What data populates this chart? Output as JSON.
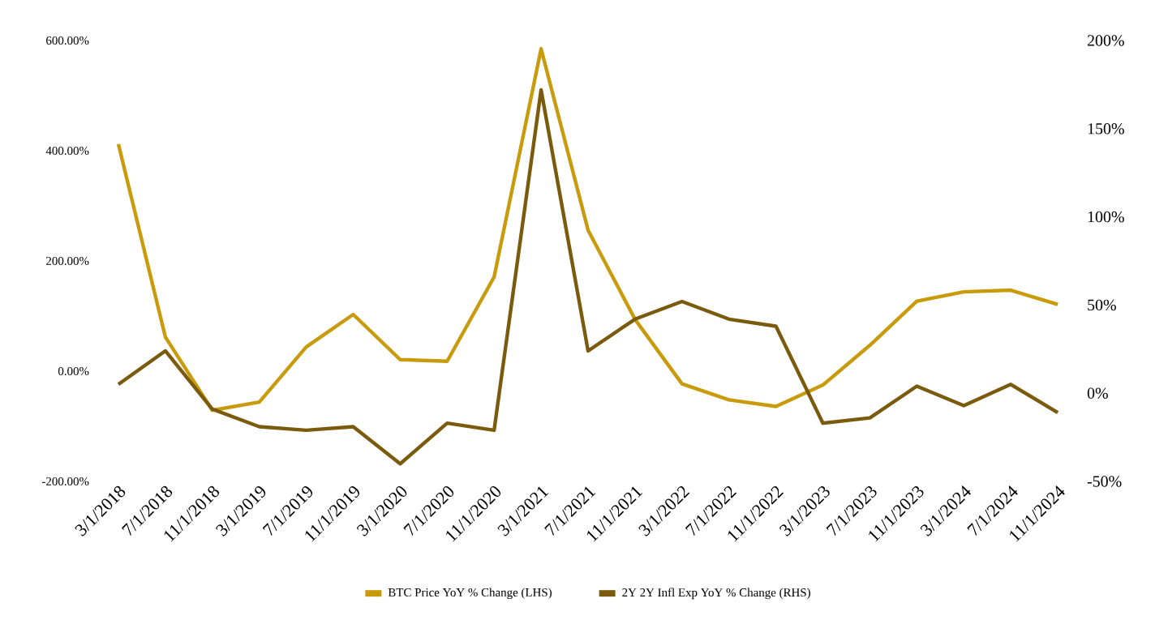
{
  "chart_data": {
    "type": "line",
    "categories": [
      "3/1/2018",
      "7/1/2018",
      "11/1/2018",
      "3/1/2019",
      "7/1/2019",
      "11/1/2019",
      "3/1/2020",
      "7/1/2020",
      "11/1/2020",
      "3/1/2021",
      "7/1/2021",
      "11/1/2021",
      "3/1/2022",
      "7/1/2022",
      "11/1/2022",
      "3/1/2023",
      "7/1/2023",
      "11/1/2023",
      "3/1/2024",
      "7/1/2024",
      "11/1/2024"
    ],
    "series": [
      {
        "name": "BTC Price YoY % Change (LHS)",
        "color": "#c89b0c",
        "values": [
          412,
          62,
          -71,
          -56,
          44,
          103,
          21,
          18,
          171,
          585,
          256,
          94,
          -23,
          -52,
          -64,
          -25,
          47,
          127,
          144,
          147,
          121
        ]
      },
      {
        "name": "2Y 2Y Infl Exp YoY % Change (RHS)",
        "color": "#7a5a0c",
        "axis": "y2",
        "values": [
          5,
          24,
          -9,
          -19,
          -21,
          -19,
          -40,
          -17,
          -21,
          172,
          24,
          42,
          52,
          42,
          38,
          -17,
          -14,
          4,
          -7,
          5,
          -11
        ]
      }
    ],
    "ylim": [
      -200,
      600
    ],
    "yticks": [
      {
        "value": -200,
        "label": "-200.00%"
      },
      {
        "value": 0,
        "label": "0.00%"
      },
      {
        "value": 200,
        "label": "200.00%"
      },
      {
        "value": 400,
        "label": "400.00%"
      },
      {
        "value": 600,
        "label": "600.00%"
      }
    ],
    "y2lim": [
      -50,
      200
    ],
    "y2ticks": [
      {
        "value": -50,
        "label": "-50%"
      },
      {
        "value": 0,
        "label": "0%"
      },
      {
        "value": 50,
        "label": "50%"
      },
      {
        "value": 100,
        "label": "100%"
      },
      {
        "value": 150,
        "label": "150%"
      },
      {
        "value": 200,
        "label": "200%"
      }
    ],
    "grid": false,
    "legend": "bottom"
  }
}
